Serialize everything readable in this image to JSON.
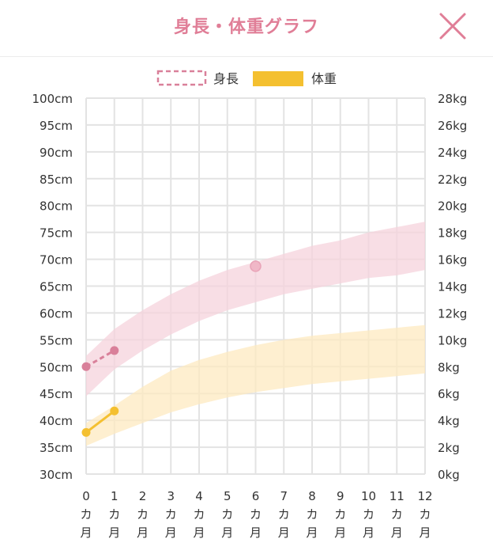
{
  "header": {
    "title": "身長・体重グラフ",
    "close_icon": "close-icon"
  },
  "colors": {
    "height": "#d9809a",
    "height_band": "#f6d3dc",
    "weight": "#f4c030",
    "weight_band": "#fde9c0",
    "grid": "#e3e3e3",
    "title": "#e07e97"
  },
  "chart_data": {
    "type": "line",
    "x_ticks": [
      0,
      1,
      2,
      3,
      4,
      5,
      6,
      7,
      8,
      9,
      10,
      11,
      12
    ],
    "x_tick_unit_lines": [
      "カ",
      "月"
    ],
    "xlim": [
      0,
      12
    ],
    "left_axis": {
      "unit": "cm",
      "ylim": [
        30,
        100
      ],
      "ticks": [
        "30cm",
        "35cm",
        "40cm",
        "45cm",
        "50cm",
        "55cm",
        "60cm",
        "65cm",
        "70cm",
        "75cm",
        "80cm",
        "85cm",
        "90cm",
        "95cm",
        "100cm"
      ]
    },
    "right_axis": {
      "unit": "kg",
      "ylim": [
        0,
        28
      ],
      "ticks": [
        "0kg",
        "2kg",
        "4kg",
        "6kg",
        "8kg",
        "10kg",
        "12kg",
        "14kg",
        "16kg",
        "18kg",
        "20kg",
        "22kg",
        "24kg",
        "26kg",
        "28kg"
      ]
    },
    "legend": [
      {
        "label": "身長",
        "style": "dashed-box"
      },
      {
        "label": "体重",
        "style": "filled-box"
      }
    ],
    "series": [
      {
        "name": "身長",
        "axis": "left",
        "points": [
          {
            "x": 0,
            "y": 50
          },
          {
            "x": 1,
            "y": 53
          }
        ],
        "extra_points": [
          {
            "x": 6,
            "y": 68.7
          }
        ],
        "band": {
          "x": [
            0,
            1,
            2,
            3,
            4,
            5,
            6,
            7,
            8,
            9,
            10,
            11,
            12
          ],
          "low": [
            44.5,
            49.5,
            53,
            56,
            58.5,
            60.5,
            62,
            63.5,
            64.5,
            65.5,
            66.5,
            67,
            68
          ],
          "high": [
            52,
            57,
            60.5,
            63.5,
            66,
            68,
            69.5,
            71,
            72.5,
            73.5,
            75,
            76,
            77
          ]
        }
      },
      {
        "name": "体重",
        "axis": "right",
        "points": [
          {
            "x": 0,
            "y": 3.1
          },
          {
            "x": 1,
            "y": 4.7
          }
        ],
        "band": {
          "x": [
            0,
            1,
            2,
            3,
            4,
            5,
            6,
            7,
            8,
            9,
            10,
            11,
            12
          ],
          "low": [
            2.1,
            3.0,
            3.8,
            4.6,
            5.2,
            5.7,
            6.1,
            6.4,
            6.7,
            6.9,
            7.1,
            7.3,
            7.5
          ],
          "high": [
            3.8,
            5.1,
            6.5,
            7.7,
            8.5,
            9.1,
            9.6,
            10.0,
            10.3,
            10.5,
            10.7,
            10.9,
            11.1
          ]
        }
      }
    ]
  }
}
